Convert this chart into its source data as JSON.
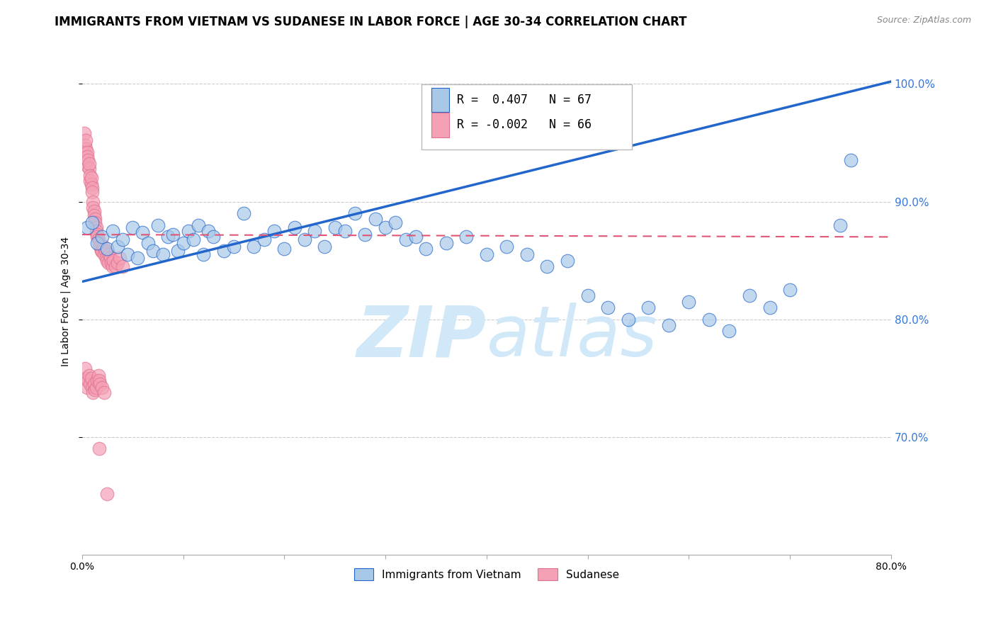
{
  "title": "IMMIGRANTS FROM VIETNAM VS SUDANESE IN LABOR FORCE | AGE 30-34 CORRELATION CHART",
  "source": "Source: ZipAtlas.com",
  "ylabel": "In Labor Force | Age 30-34",
  "legend_label_blue": "Immigrants from Vietnam",
  "legend_label_pink": "Sudanese",
  "r_blue": 0.407,
  "n_blue": 67,
  "r_pink": -0.002,
  "n_pink": 66,
  "xlim": [
    0.0,
    0.8
  ],
  "ylim": [
    0.6,
    1.03
  ],
  "yticks": [
    0.7,
    0.8,
    0.9,
    1.0
  ],
  "ytick_labels": [
    "70.0%",
    "80.0%",
    "90.0%",
    "100.0%"
  ],
  "xticks": [
    0.0,
    0.1,
    0.2,
    0.3,
    0.4,
    0.5,
    0.6,
    0.7,
    0.8
  ],
  "xtick_labels": [
    "0.0%",
    "",
    "",
    "",
    "",
    "",
    "",
    "",
    "80.0%"
  ],
  "color_blue": "#a8c8e8",
  "color_pink": "#f4a0b5",
  "color_trend_blue": "#2266cc",
  "color_trend_pink": "#e05575",
  "watermark_zip": "ZIP",
  "watermark_atlas": "atlas",
  "watermark_color": "#d0e8f8",
  "blue_scatter_x": [
    0.005,
    0.01,
    0.015,
    0.02,
    0.025,
    0.03,
    0.035,
    0.04,
    0.045,
    0.05,
    0.055,
    0.06,
    0.065,
    0.07,
    0.075,
    0.08,
    0.085,
    0.09,
    0.095,
    0.1,
    0.105,
    0.11,
    0.115,
    0.12,
    0.125,
    0.13,
    0.14,
    0.15,
    0.16,
    0.17,
    0.18,
    0.19,
    0.2,
    0.21,
    0.22,
    0.23,
    0.24,
    0.25,
    0.26,
    0.27,
    0.28,
    0.29,
    0.3,
    0.31,
    0.32,
    0.33,
    0.34,
    0.36,
    0.38,
    0.4,
    0.42,
    0.44,
    0.46,
    0.48,
    0.5,
    0.52,
    0.54,
    0.56,
    0.58,
    0.6,
    0.62,
    0.64,
    0.66,
    0.68,
    0.7,
    0.75,
    0.76
  ],
  "blue_scatter_y": [
    0.878,
    0.882,
    0.865,
    0.87,
    0.86,
    0.875,
    0.862,
    0.868,
    0.855,
    0.878,
    0.852,
    0.874,
    0.865,
    0.858,
    0.88,
    0.855,
    0.87,
    0.872,
    0.858,
    0.865,
    0.875,
    0.868,
    0.88,
    0.855,
    0.875,
    0.87,
    0.858,
    0.862,
    0.89,
    0.862,
    0.868,
    0.875,
    0.86,
    0.878,
    0.868,
    0.875,
    0.862,
    0.878,
    0.875,
    0.89,
    0.872,
    0.885,
    0.878,
    0.882,
    0.868,
    0.87,
    0.86,
    0.865,
    0.87,
    0.855,
    0.862,
    0.855,
    0.845,
    0.85,
    0.82,
    0.81,
    0.8,
    0.81,
    0.795,
    0.815,
    0.8,
    0.79,
    0.82,
    0.81,
    0.825,
    0.88,
    0.935
  ],
  "pink_scatter_x": [
    0.002,
    0.003,
    0.004,
    0.004,
    0.005,
    0.005,
    0.006,
    0.006,
    0.007,
    0.007,
    0.008,
    0.008,
    0.009,
    0.009,
    0.01,
    0.01,
    0.011,
    0.011,
    0.012,
    0.012,
    0.013,
    0.013,
    0.014,
    0.014,
    0.015,
    0.015,
    0.016,
    0.017,
    0.018,
    0.019,
    0.02,
    0.021,
    0.022,
    0.023,
    0.024,
    0.025,
    0.026,
    0.027,
    0.028,
    0.029,
    0.03,
    0.031,
    0.033,
    0.035,
    0.037,
    0.04,
    0.003,
    0.004,
    0.005,
    0.006,
    0.007,
    0.008,
    0.009,
    0.01,
    0.011,
    0.012,
    0.013,
    0.014,
    0.015,
    0.016,
    0.017,
    0.018,
    0.02,
    0.022,
    0.017,
    0.025
  ],
  "pink_scatter_y": [
    0.958,
    0.948,
    0.945,
    0.952,
    0.942,
    0.938,
    0.93,
    0.935,
    0.928,
    0.932,
    0.918,
    0.922,
    0.915,
    0.92,
    0.912,
    0.908,
    0.9,
    0.895,
    0.892,
    0.888,
    0.885,
    0.882,
    0.878,
    0.875,
    0.872,
    0.87,
    0.868,
    0.865,
    0.862,
    0.858,
    0.858,
    0.862,
    0.855,
    0.858,
    0.852,
    0.85,
    0.848,
    0.855,
    0.852,
    0.848,
    0.845,
    0.85,
    0.845,
    0.848,
    0.852,
    0.845,
    0.758,
    0.75,
    0.742,
    0.748,
    0.752,
    0.745,
    0.75,
    0.742,
    0.738,
    0.745,
    0.74,
    0.742,
    0.748,
    0.752,
    0.748,
    0.745,
    0.742,
    0.738,
    0.69,
    0.652
  ],
  "title_fontsize": 12,
  "axis_label_fontsize": 10,
  "tick_fontsize": 9,
  "legend_fontsize": 11,
  "source_fontsize": 9
}
